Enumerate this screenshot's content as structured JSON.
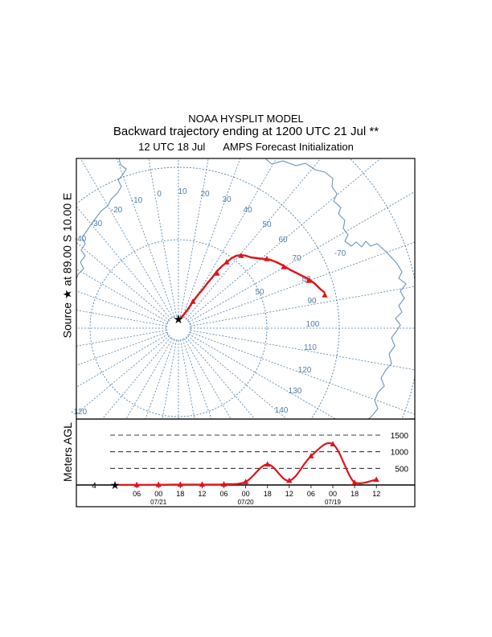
{
  "titles": {
    "line1": "NOAA HYSPLIT MODEL",
    "line2": "Backward trajectory ending at 1200 UTC 21 Jul **",
    "line3_left": "12 UTC 18 Jul",
    "line3_right": "AMPS  Forecast Initialization"
  },
  "map": {
    "source_label": "Source",
    "source_location": "at   89.00 S   10.00 E",
    "meridian_labels": [
      "-120",
      "-40",
      "-30",
      "-20",
      "-10",
      "0",
      "10",
      "20",
      "30",
      "40",
      "50",
      "60",
      "70",
      "80",
      "90",
      "100",
      "110",
      "120",
      "130",
      "140"
    ],
    "inner_meridian_label": "50",
    "coast_label": "-70"
  },
  "vertical": {
    "ylabel": "Meters AGL",
    "y_ticks": [
      "500",
      "1000",
      "1500"
    ],
    "start_height_label": "4",
    "x_ticks": [
      "06",
      "00",
      "18",
      "12",
      "06",
      "00",
      "18",
      "12",
      "06",
      "00",
      "18",
      "12"
    ],
    "date_labels": [
      "07/21",
      "07/20",
      "07/19"
    ]
  },
  "colors": {
    "trajectory": "#e0141b",
    "grid": "#4f7fa8",
    "coast": "#6a95bb"
  },
  "chart_data": {
    "type": "line",
    "title": "Backward trajectory ending at 1200 UTC 21 Jul **",
    "xlabel": "",
    "ylabel": "Meters AGL",
    "x": [
      "07/21 12",
      "07/21 06",
      "07/21 00",
      "07/20 18",
      "07/20 12",
      "07/20 06",
      "07/20 00",
      "07/19 18",
      "07/19 12",
      "07/19 06",
      "07/19 00",
      "07/18 18",
      "07/18 12"
    ],
    "series": [
      {
        "name": "",
        "values": [
          4,
          5,
          8,
          12,
          14,
          20,
          95,
          620,
          130,
          870,
          1230,
          70,
          160
        ]
      }
    ],
    "ylim": [
      0,
      1500
    ]
  }
}
